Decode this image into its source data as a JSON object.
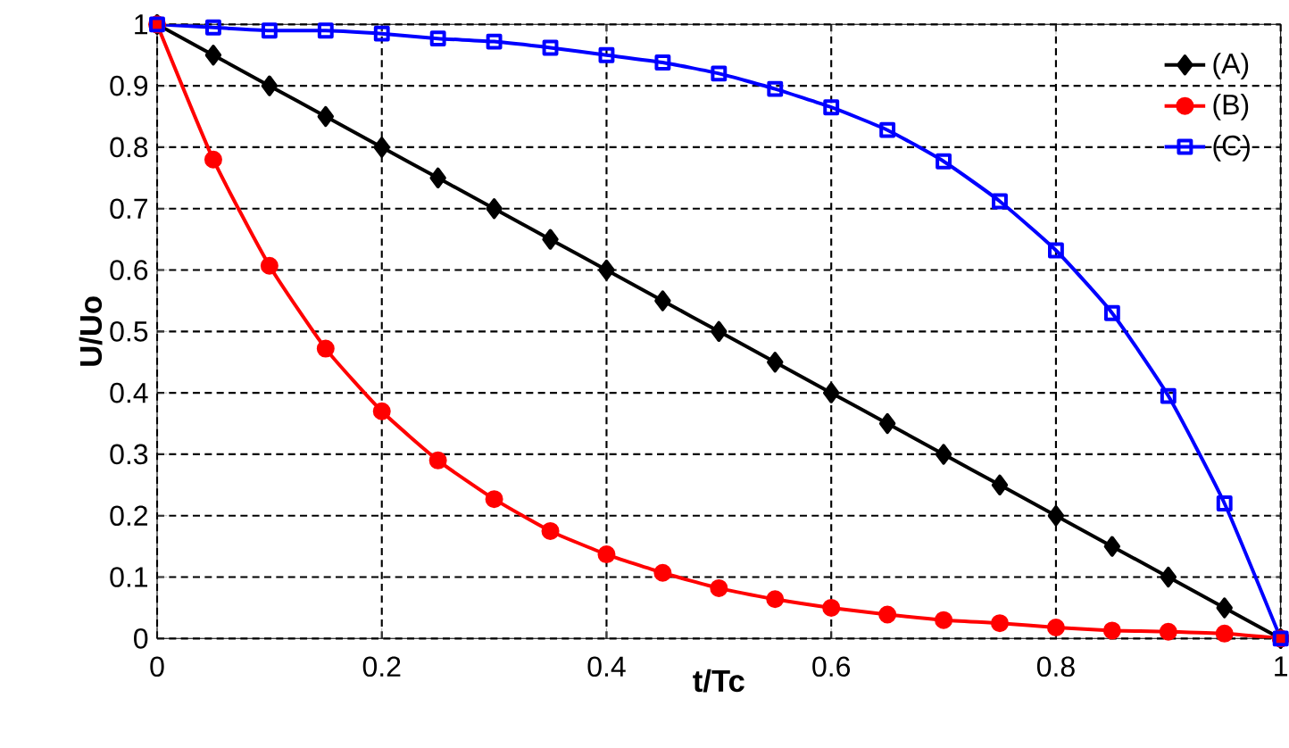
{
  "chart_data": {
    "type": "line",
    "xlabel": "t/Tc",
    "ylabel": "U/Uo",
    "x": [
      0,
      0.05,
      0.1,
      0.15,
      0.2,
      0.25,
      0.3,
      0.35,
      0.4,
      0.45,
      0.5,
      0.55,
      0.6,
      0.65,
      0.7,
      0.75,
      0.8,
      0.85,
      0.9,
      0.95,
      1
    ],
    "series": [
      {
        "name": "(A)",
        "color": "#000000",
        "marker": "diamond",
        "values": [
          1,
          0.95,
          0.9,
          0.85,
          0.8,
          0.75,
          0.7,
          0.65,
          0.6,
          0.55,
          0.5,
          0.45,
          0.4,
          0.35,
          0.3,
          0.25,
          0.2,
          0.15,
          0.1,
          0.05,
          0
        ]
      },
      {
        "name": "(B)",
        "color": "#ff0000",
        "marker": "circle",
        "values": [
          1,
          0.78,
          0.607,
          0.472,
          0.37,
          0.29,
          0.227,
          0.175,
          0.137,
          0.107,
          0.082,
          0.064,
          0.05,
          0.039,
          0.03,
          0.025,
          0.018,
          0.013,
          0.011,
          0.008,
          0
        ]
      },
      {
        "name": "(C)",
        "color": "#0000ff",
        "marker": "square",
        "values": [
          1,
          0.995,
          0.99,
          0.99,
          0.985,
          0.977,
          0.972,
          0.962,
          0.95,
          0.938,
          0.92,
          0.895,
          0.865,
          0.828,
          0.777,
          0.712,
          0.632,
          0.53,
          0.395,
          0.22,
          0
        ]
      }
    ],
    "xlim": [
      0,
      1
    ],
    "xticks": [
      0,
      0.2,
      0.4,
      0.6,
      0.8,
      1
    ],
    "ylim": [
      0,
      1
    ],
    "yticks": [
      0,
      0.1,
      0.2,
      0.3,
      0.4,
      0.5,
      0.6,
      0.7,
      0.8,
      0.9,
      1
    ],
    "grid": true,
    "line_style": "solid",
    "legend": "top right"
  }
}
